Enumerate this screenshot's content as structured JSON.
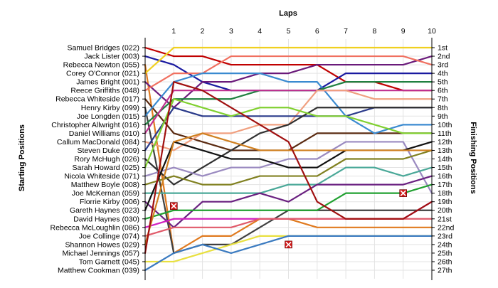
{
  "chart_data": {
    "type": "line",
    "title": "",
    "xlabel": "Laps",
    "ylabel_left": "Starting Positions",
    "ylabel_right": "Finishing Positions",
    "x": [
      0,
      1,
      2,
      3,
      4,
      5,
      6,
      7,
      8,
      9,
      10
    ],
    "x_tick_labels": [
      "1",
      "2",
      "3",
      "4",
      "5",
      "6",
      "7",
      "8",
      "9",
      "10"
    ],
    "y_inverted": true,
    "ylim": [
      1,
      27
    ],
    "grid": true,
    "finishing_labels": [
      "1st",
      "2nd",
      "3rd",
      "4th",
      "5th",
      "6th",
      "7th",
      "8th",
      "9th",
      "10th",
      "11th",
      "12th",
      "13th",
      "14th",
      "15th",
      "16th",
      "17th",
      "18th",
      "19th",
      "20th",
      "21st",
      "22nd",
      "23rd",
      "24th",
      "25th",
      "26th",
      "27th"
    ],
    "series": [
      {
        "name": "Samuel Bridges (022)",
        "color": "#c00000",
        "positions": [
          1,
          2,
          2,
          3,
          3,
          3,
          3,
          5,
          5,
          6,
          6
        ]
      },
      {
        "name": "Jack Lister (003)",
        "color": "#1a1aa0",
        "positions": [
          2,
          3,
          5,
          6,
          6,
          6,
          6,
          4,
          4,
          4,
          4
        ]
      },
      {
        "name": "Rebecca Newton (055)",
        "color": "#e07a1f",
        "positions": [
          3,
          25,
          23,
          23,
          21,
          21,
          22,
          22,
          22,
          22,
          22
        ]
      },
      {
        "name": "Corey O'Connor (021)",
        "color": "#f0d020",
        "positions": [
          4,
          1,
          1,
          1,
          1,
          1,
          1,
          1,
          1,
          1,
          1
        ]
      },
      {
        "name": "James Bright (001)",
        "color": "#6a1a7a",
        "positions": [
          5,
          8,
          5,
          5,
          4,
          4,
          3,
          3,
          3,
          3,
          2
        ]
      },
      {
        "name": "Reece Griffiths (048)",
        "color": "#f07060",
        "positions": [
          6,
          4,
          4,
          2,
          2,
          2,
          2,
          2,
          2,
          2,
          3
        ]
      },
      {
        "name": "Rebecca Whiteside (017)",
        "color": "#5a2a10",
        "positions": [
          7,
          11,
          12,
          13,
          13,
          13,
          11,
          11,
          11,
          11,
          11
        ]
      },
      {
        "name": "Henry Kirby (099)",
        "color": "#404040",
        "positions": [
          8,
          25,
          24,
          24,
          22,
          20,
          20,
          20,
          20,
          20,
          20
        ]
      },
      {
        "name": "Joe Longden (015)",
        "color": "#3a8ad0",
        "positions": [
          9,
          5,
          4,
          4,
          4,
          5,
          5,
          9,
          11,
          10,
          10
        ]
      },
      {
        "name": "Christopher Allwright (016)",
        "color": "#208040",
        "positions": [
          10,
          7,
          7,
          7,
          6,
          6,
          6,
          5,
          5,
          5,
          5
        ]
      },
      {
        "name": "Daniel Williams (010)",
        "color": "#c03090",
        "positions": [
          11,
          6,
          6,
          6,
          6,
          6,
          6,
          6,
          6,
          6,
          6
        ]
      },
      {
        "name": "Callum MacDonald (084)",
        "color": "#f0a080",
        "positions": [
          12,
          13,
          11,
          11,
          10,
          10,
          6,
          6,
          7,
          7,
          7
        ]
      },
      {
        "name": "Steven Duke (009)",
        "color": "#2a3a8a",
        "positions": [
          13,
          8,
          9,
          9,
          9,
          9,
          9,
          9,
          8,
          8,
          8
        ]
      },
      {
        "name": "Rory McHugh (026)",
        "color": "#303030",
        "positions": [
          14,
          17,
          15,
          13,
          11,
          10,
          8,
          8,
          8,
          8,
          8
        ]
      },
      {
        "name": "Sarah Howard (025)",
        "color": "#80d030",
        "positions": [
          15,
          7,
          8,
          9,
          8,
          8,
          9,
          9,
          10,
          11,
          11
        ]
      },
      {
        "name": "Nicola Whiteside (071)",
        "color": "#9a8ac0",
        "positions": [
          16,
          15,
          16,
          15,
          15,
          14,
          14,
          12,
          12,
          12,
          18
        ]
      },
      {
        "name": "Matthew Boyle (008)",
        "color": "#808020",
        "positions": [
          17,
          16,
          17,
          17,
          16,
          16,
          16,
          14,
          14,
          14,
          13
        ]
      },
      {
        "name": "Joe McKernan (059)",
        "color": "#4aa898",
        "positions": [
          18,
          18,
          18,
          18,
          18,
          17,
          17,
          15,
          15,
          16,
          15
        ]
      },
      {
        "name": "Florrie Kirby (006)",
        "color": "#6a2080",
        "positions": [
          19,
          22,
          19,
          19,
          18,
          19,
          17,
          17,
          17,
          17,
          16
        ]
      },
      {
        "name": "Gareth Haynes (023)",
        "color": "#101010",
        "positions": [
          20,
          12,
          13,
          14,
          14,
          15,
          15,
          13,
          13,
          13,
          12
        ]
      },
      {
        "name": "David Haynes (030)",
        "color": "#20a030",
        "positions": [
          21,
          20,
          20,
          20,
          20,
          20,
          20,
          18,
          18,
          18,
          17
        ]
      },
      {
        "name": "Rebecca McLoughlin (086)",
        "color": "#d020c0",
        "positions": [
          22,
          21,
          21,
          21,
          21,
          21,
          21,
          21,
          21,
          21,
          19
        ]
      },
      {
        "name": "Joe Collinge (074)",
        "color": "#e05a6a",
        "positions": [
          23,
          22,
          22,
          22,
          21,
          21,
          21,
          21,
          21,
          21,
          21
        ]
      },
      {
        "name": "Shannon Howes (029)",
        "color": "#d08020",
        "positions": [
          24,
          12,
          11,
          12,
          13,
          13,
          13,
          13,
          13,
          13,
          13
        ]
      },
      {
        "name": "Michael Jennings (057)",
        "color": "#a01010",
        "positions": [
          25,
          5,
          6,
          8,
          10,
          12,
          19,
          21,
          21,
          21,
          19
        ]
      },
      {
        "name": "Tom Garnett (045)",
        "color": "#e8e040",
        "positions": [
          26,
          26,
          25,
          24,
          23,
          23,
          23,
          23,
          23,
          23,
          23
        ]
      },
      {
        "name": "Matthew Cookman (039)",
        "color": "#3a7ac0",
        "positions": [
          27,
          25,
          24,
          25,
          24,
          23,
          23,
          23,
          23,
          23,
          23
        ]
      }
    ],
    "retirements": [
      {
        "lap": 1,
        "position": 19.5
      },
      {
        "lap": 5,
        "position": 24
      },
      {
        "lap": 9,
        "position": 18
      }
    ]
  }
}
